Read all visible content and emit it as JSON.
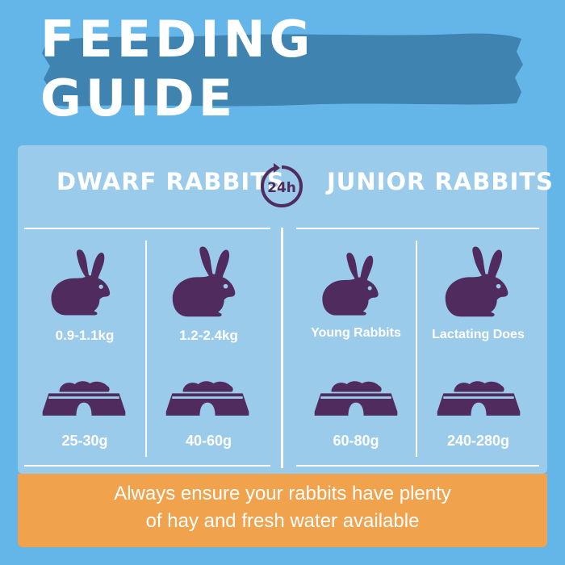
{
  "title": "FEEDING GUIDE",
  "colors": {
    "background": "#64b5e8",
    "banner": "#3f84b1",
    "panel": "#9bcbea",
    "icon": "#4f2b5e",
    "footer": "#f0a24c",
    "text": "#ffffff"
  },
  "groups": [
    {
      "title": "DWARF RABBITS"
    },
    {
      "title": "JUNIOR RABBITS"
    }
  ],
  "clock_label": "24h",
  "clock_icon": "clock-24h-icon",
  "cards": [
    {
      "label": "0.9-1.1kg",
      "amount": "25-30g",
      "rabbit_icon": "rabbit-icon",
      "bowl_icon": "food-bowl-icon"
    },
    {
      "label": "1.2-2.4kg",
      "amount": "40-60g",
      "rabbit_icon": "rabbit-icon",
      "bowl_icon": "food-bowl-icon"
    },
    {
      "label": "Young Rabbits",
      "amount": "60-80g",
      "rabbit_icon": "rabbit-icon",
      "bowl_icon": "food-bowl-icon"
    },
    {
      "label": "Lactating Does",
      "amount": "240-280g",
      "rabbit_icon": "rabbit-icon",
      "bowl_icon": "food-bowl-icon"
    }
  ],
  "footer": {
    "line1": "Always ensure your rabbits have plenty",
    "line2": "of hay and fresh water available"
  }
}
